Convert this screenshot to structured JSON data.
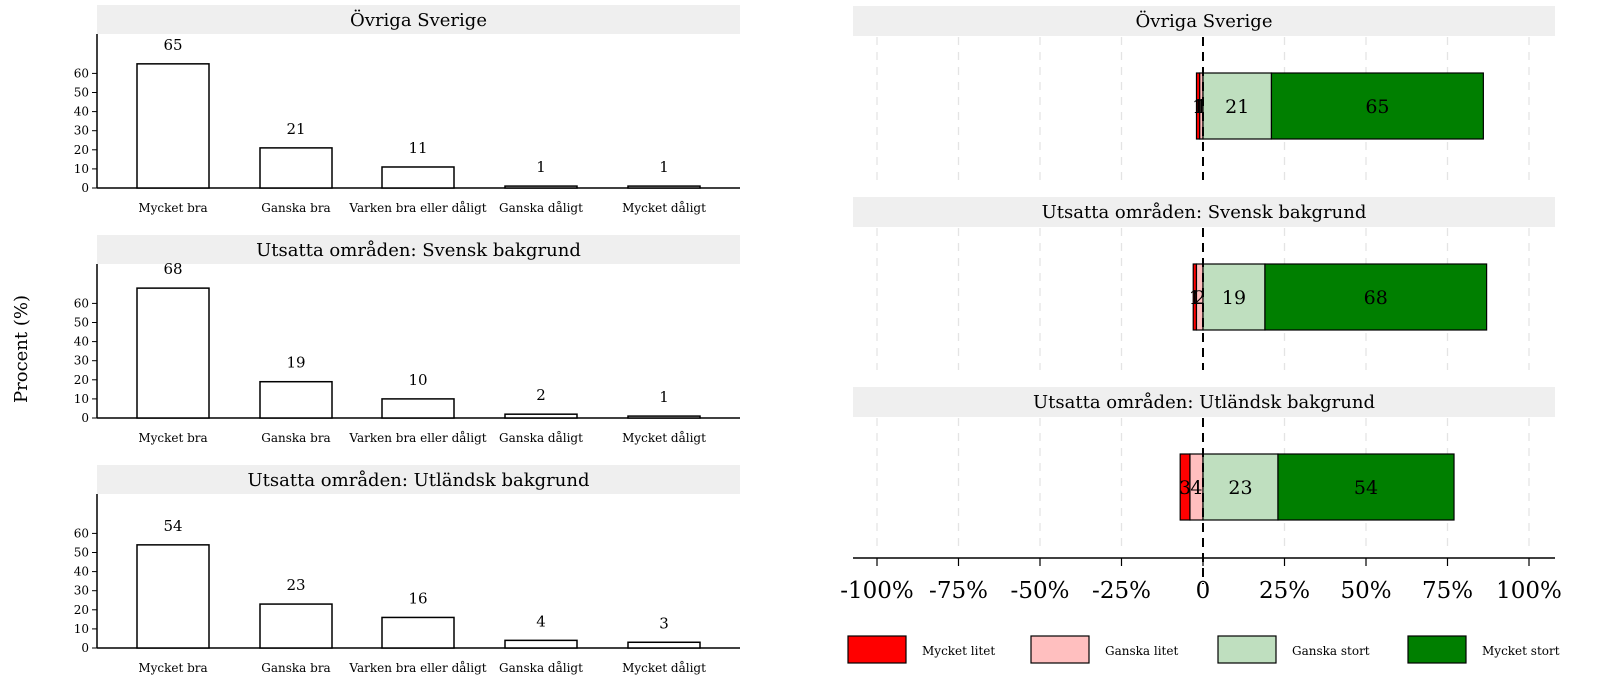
{
  "ylabel": "Procent (%)",
  "chart_data": [
    {
      "type": "bar",
      "title": "Övriga Sverige",
      "categories": [
        "Mycket bra",
        "Ganska bra",
        "Varken bra eller dåligt",
        "Ganska dåligt",
        "Mycket dåligt"
      ],
      "values": [
        65,
        21,
        11,
        1,
        1
      ],
      "labels": [
        "65",
        "21",
        "11",
        "1",
        "1"
      ],
      "yticks": [
        0,
        10,
        20,
        30,
        40,
        50,
        60
      ],
      "ylim": [
        0,
        80
      ]
    },
    {
      "type": "bar",
      "title": "Utsatta områden: Svensk bakgrund",
      "categories": [
        "Mycket bra",
        "Ganska bra",
        "Varken bra eller dåligt",
        "Ganska dåligt",
        "Mycket dåligt"
      ],
      "values": [
        68,
        19,
        10,
        2,
        1
      ],
      "labels": [
        "68",
        "19",
        "10",
        "2",
        "1"
      ],
      "yticks": [
        0,
        10,
        20,
        30,
        40,
        50,
        60
      ],
      "ylim": [
        0,
        80
      ]
    },
    {
      "type": "bar",
      "title": "Utsatta områden: Utländsk bakgrund",
      "categories": [
        "Mycket bra",
        "Ganska bra",
        "Varken bra eller dåligt",
        "Ganska dåligt",
        "Mycket dåligt"
      ],
      "values": [
        54,
        23,
        16,
        4,
        3
      ],
      "labels": [
        "54",
        "23",
        "16",
        "4",
        "3"
      ],
      "yticks": [
        0,
        10,
        20,
        30,
        40,
        50,
        60
      ],
      "ylim": [
        0,
        80
      ]
    },
    {
      "type": "bar",
      "orientation": "horizontal-diverging",
      "xlim": [
        -100,
        100
      ],
      "xticks": [
        {
          "value": -100,
          "label": "-100%"
        },
        {
          "value": -75,
          "label": "-75%"
        },
        {
          "value": -50,
          "label": "-50%"
        },
        {
          "value": -25,
          "label": "-25%"
        },
        {
          "value": 0,
          "label": "0"
        },
        {
          "value": 25,
          "label": "25%"
        },
        {
          "value": 50,
          "label": "50%"
        },
        {
          "value": 75,
          "label": "75%"
        },
        {
          "value": 100,
          "label": "100%"
        }
      ],
      "legend_position": "bottom",
      "series": [
        {
          "name": "Mycket litet",
          "color": "#ff0000"
        },
        {
          "name": "Ganska litet",
          "color": "#ffbfbf"
        },
        {
          "name": "Ganska stort",
          "color": "#bfdfbf"
        },
        {
          "name": "Mycket stort",
          "color": "#007f00"
        }
      ],
      "panels": [
        {
          "title": "Övriga Sverige",
          "values": [
            1,
            1,
            21,
            65
          ],
          "labels": [
            "1",
            "1",
            "21",
            "65"
          ]
        },
        {
          "title": "Utsatta områden: Svensk bakgrund",
          "values": [
            1,
            2,
            19,
            68
          ],
          "labels": [
            "1",
            "2",
            "19",
            "68"
          ]
        },
        {
          "title": "Utsatta områden: Utländsk bakgrund",
          "values": [
            3,
            4,
            23,
            54
          ],
          "labels": [
            "3",
            "4",
            "23",
            "54"
          ]
        }
      ]
    }
  ]
}
